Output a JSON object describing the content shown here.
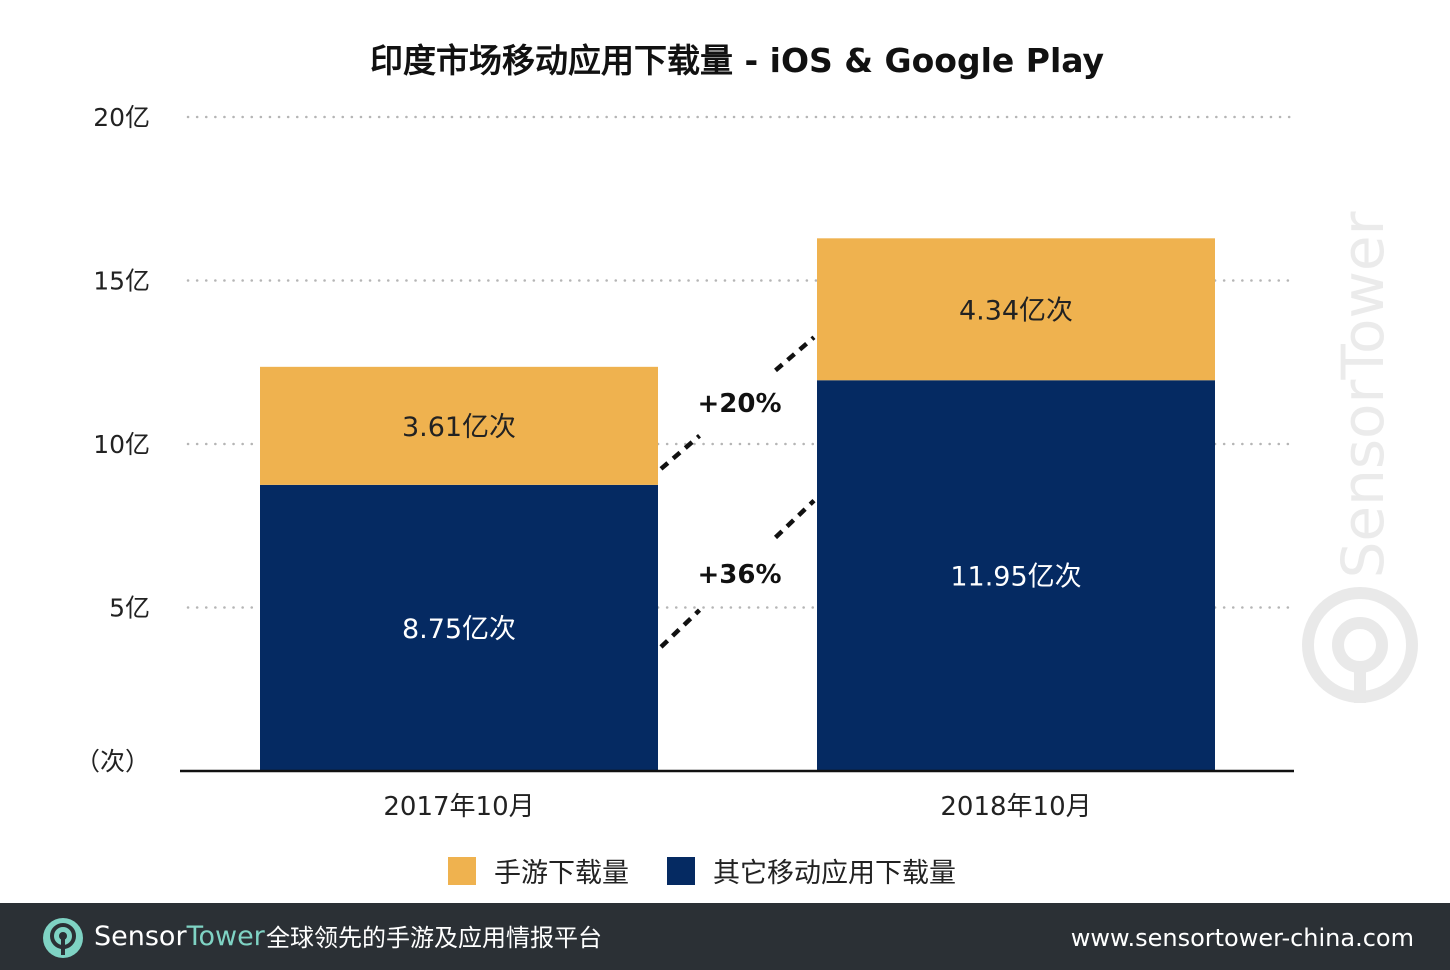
{
  "chart_data": {
    "type": "bar",
    "stacked": true,
    "title": "印度市场移动应用下载量 - iOS & Google Play",
    "unit_label": "（次）",
    "categories": [
      "2017年10月",
      "2018年10月"
    ],
    "series": [
      {
        "name": "其它移动应用下载量",
        "values": [
          8.75,
          11.95
        ],
        "labels": [
          "8.75亿次",
          "11.95亿次"
        ],
        "color": "#052a62"
      },
      {
        "name": "手游下载量",
        "values": [
          3.61,
          4.34
        ],
        "labels": [
          "3.61亿次",
          "4.34亿次"
        ],
        "color": "#efb24f"
      }
    ],
    "y_ticks": [
      {
        "value": 5,
        "label": "5亿"
      },
      {
        "value": 10,
        "label": "10亿"
      },
      {
        "value": 15,
        "label": "15亿"
      },
      {
        "value": 20,
        "label": "20亿"
      }
    ],
    "ylim": [
      0,
      20
    ],
    "grid": "dotted",
    "legend": "bottom",
    "annotations": [
      {
        "label": "+20%",
        "series": "手游下载量"
      },
      {
        "label": "+36%",
        "series": "其它移动应用下载量"
      }
    ]
  },
  "watermark": {
    "text": "SensorTower"
  },
  "footer": {
    "brand_first": "Sensor",
    "brand_second": "Tower",
    "tagline": "全球领先的手游及应用情报平台",
    "url": "www.sensortower-china.com",
    "brand_color": "#7fd3c4",
    "background": "#2b3035"
  }
}
